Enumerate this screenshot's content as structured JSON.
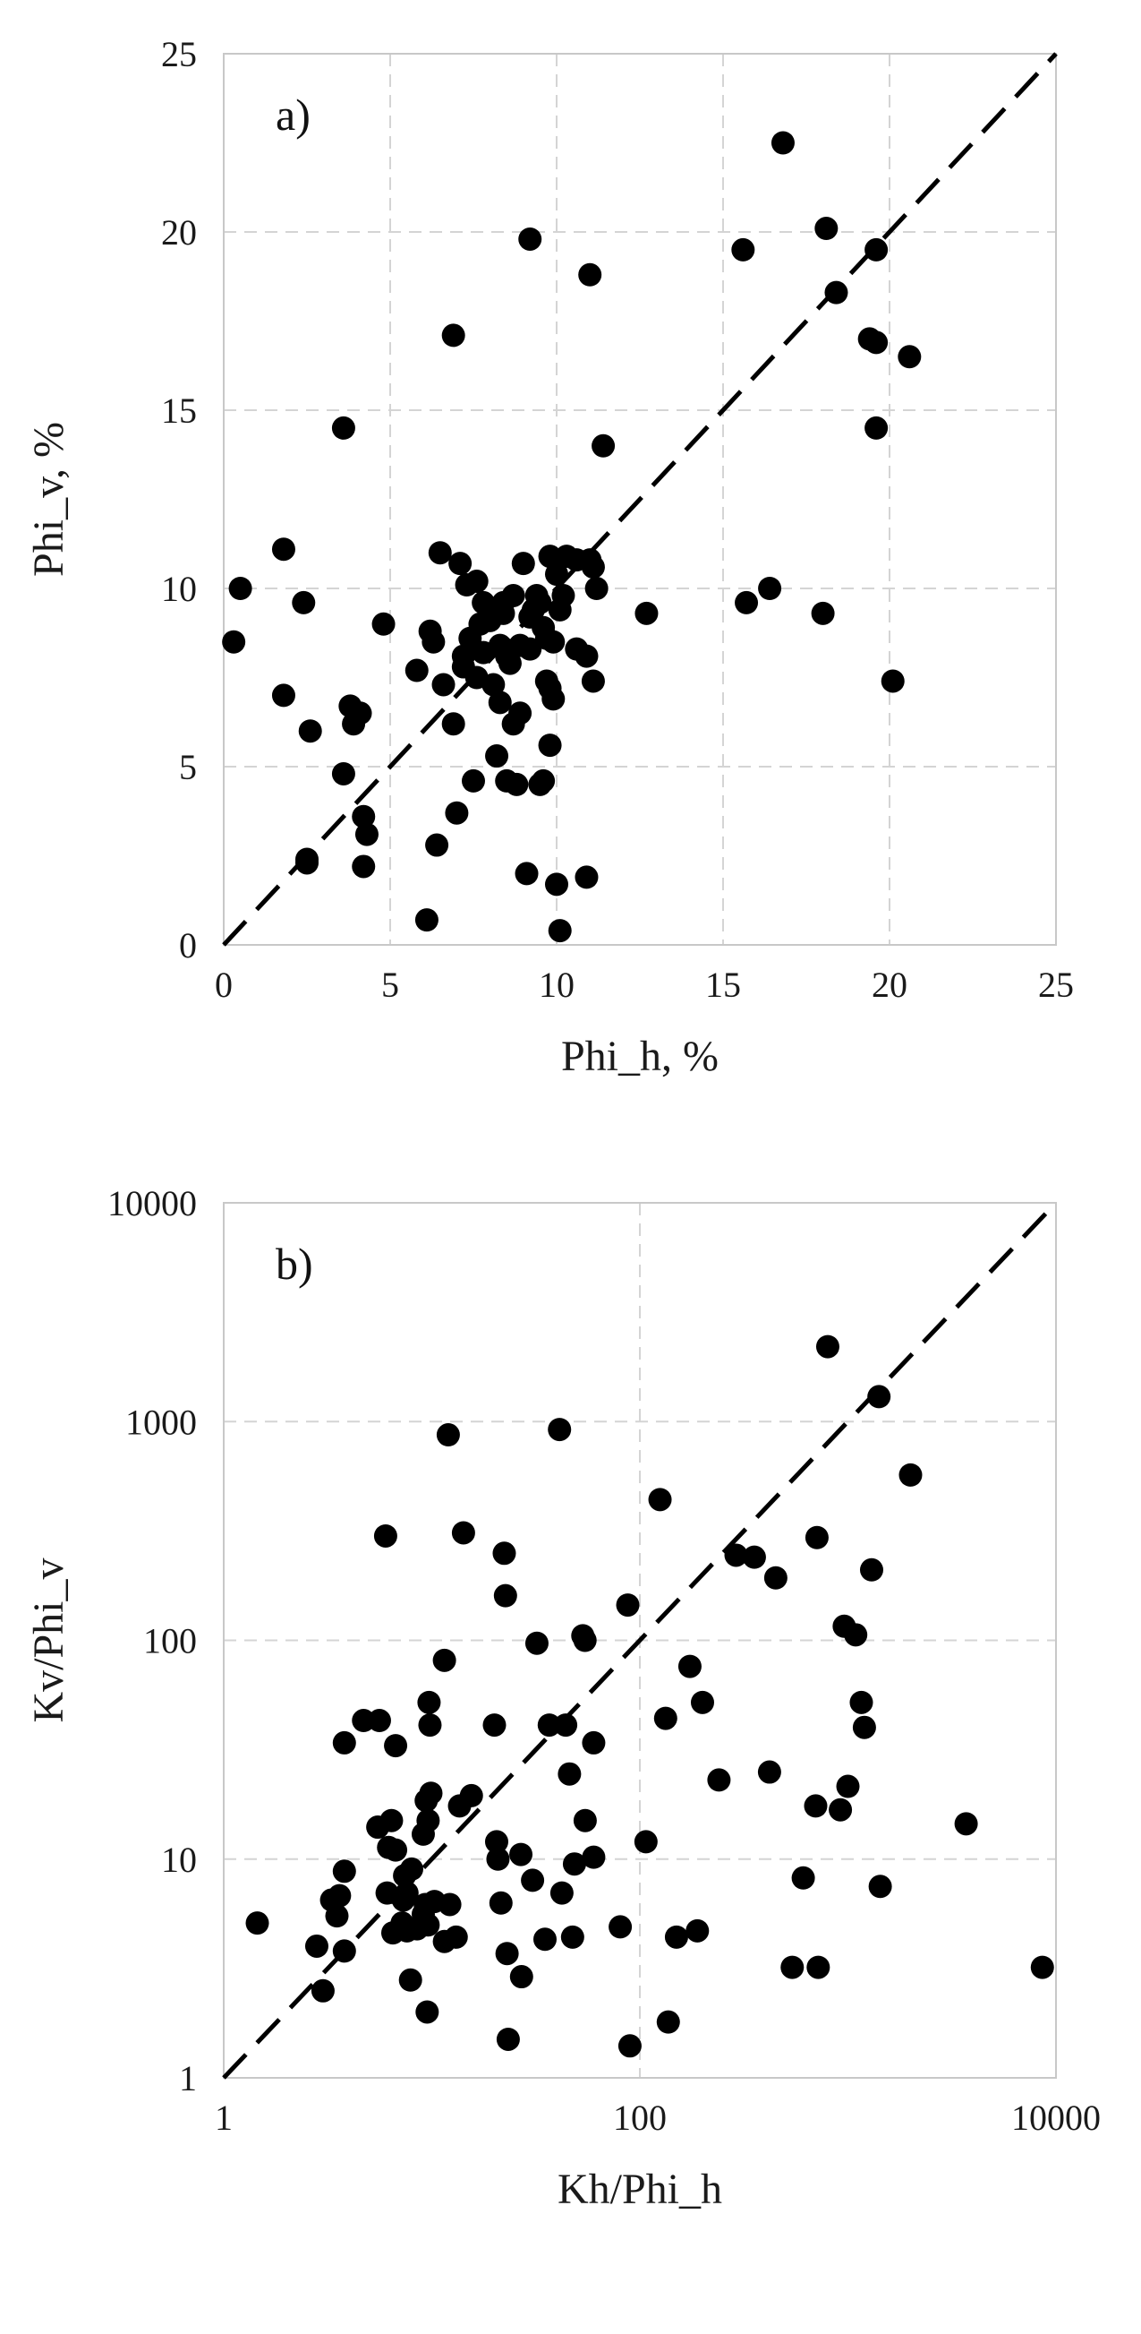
{
  "chart_data": [
    {
      "type": "scatter",
      "panel_label": "a)",
      "xlabel": "Phi_h, %",
      "ylabel": "Phi_v, %",
      "xlim": [
        0,
        25
      ],
      "ylim": [
        0,
        25
      ],
      "xticks": [
        "0",
        "5",
        "10",
        "15",
        "20",
        "25"
      ],
      "yticks": [
        "0",
        "5",
        "10",
        "15",
        "20",
        "25"
      ],
      "x_scale": "linear",
      "y_scale": "linear",
      "grid": true,
      "reference_line": "1:1 dashed",
      "points": [
        [
          16.8,
          22.5
        ],
        [
          9.2,
          19.8
        ],
        [
          18.1,
          20.1
        ],
        [
          19.6,
          19.5
        ],
        [
          15.6,
          19.5
        ],
        [
          11,
          18.8
        ],
        [
          18.4,
          18.3
        ],
        [
          6.9,
          17.1
        ],
        [
          19.4,
          17
        ],
        [
          19.6,
          16.9
        ],
        [
          20.6,
          16.5
        ],
        [
          3.6,
          14.5
        ],
        [
          19.6,
          14.5
        ],
        [
          11.4,
          14
        ],
        [
          0.5,
          10
        ],
        [
          1.8,
          11.1
        ],
        [
          2.4,
          9.6
        ],
        [
          0.3,
          8.5
        ],
        [
          4.8,
          9
        ],
        [
          1.8,
          7
        ],
        [
          2.6,
          6
        ],
        [
          3.8,
          6.7
        ],
        [
          3.9,
          6.2
        ],
        [
          4.1,
          6.5
        ],
        [
          3.6,
          4.8
        ],
        [
          4.2,
          3.6
        ],
        [
          4.3,
          3.1
        ],
        [
          4.2,
          2.2
        ],
        [
          2.5,
          2.4
        ],
        [
          2.5,
          2.3
        ],
        [
          6.1,
          0.7
        ],
        [
          6.4,
          2.8
        ],
        [
          7.0,
          3.7
        ],
        [
          6.2,
          8.8
        ],
        [
          6.3,
          8.5
        ],
        [
          5.8,
          7.7
        ],
        [
          6.5,
          11
        ],
        [
          7.1,
          10.7
        ],
        [
          7.3,
          10.1
        ],
        [
          7.6,
          10.2
        ],
        [
          6.6,
          7.3
        ],
        [
          6.9,
          6.2
        ],
        [
          7.2,
          7.8
        ],
        [
          7.4,
          8.6
        ],
        [
          7.8,
          9.6
        ],
        [
          8,
          9.1
        ],
        [
          8.3,
          8.4
        ],
        [
          8.4,
          9.3
        ],
        [
          8.5,
          8.1
        ],
        [
          8.7,
          9.8
        ],
        [
          9,
          10.7
        ],
        [
          9.2,
          9.2
        ],
        [
          9.5,
          9.6
        ],
        [
          9.7,
          8.6
        ],
        [
          9.8,
          10.9
        ],
        [
          10,
          10.4
        ],
        [
          10.3,
          10.9
        ],
        [
          10.6,
          10.8
        ],
        [
          11,
          10.8
        ],
        [
          11.1,
          10.6
        ],
        [
          11.2,
          10
        ],
        [
          10.2,
          9.8
        ],
        [
          10.6,
          8.3
        ],
        [
          10.9,
          8.1
        ],
        [
          11.1,
          7.4
        ],
        [
          9.8,
          7.2
        ],
        [
          9.9,
          6.9
        ],
        [
          9.7,
          7.4
        ],
        [
          8.9,
          6.5
        ],
        [
          8.7,
          6.2
        ],
        [
          8.2,
          5.3
        ],
        [
          9.8,
          5.6
        ],
        [
          9.6,
          4.6
        ],
        [
          9.5,
          4.5
        ],
        [
          8.5,
          4.6
        ],
        [
          8.8,
          4.5
        ],
        [
          7.5,
          4.6
        ],
        [
          7.8,
          8.2
        ],
        [
          7.6,
          7.5
        ],
        [
          8.1,
          7.3
        ],
        [
          8.3,
          6.8
        ],
        [
          8.6,
          7.9
        ],
        [
          9.2,
          8.3
        ],
        [
          9.4,
          9.8
        ],
        [
          9.6,
          8.9
        ],
        [
          10.1,
          9.4
        ],
        [
          9.9,
          8.5
        ],
        [
          9.1,
          2
        ],
        [
          10.9,
          1.9
        ],
        [
          10,
          1.7
        ],
        [
          10.1,
          0.4
        ],
        [
          12.7,
          9.3
        ],
        [
          15.7,
          9.6
        ],
        [
          16.4,
          10
        ],
        [
          18,
          9.3
        ],
        [
          20.1,
          7.4
        ],
        [
          7.7,
          9
        ],
        [
          8.4,
          9.6
        ],
        [
          9.3,
          9.4
        ],
        [
          8.9,
          8.4
        ],
        [
          7.2,
          8.1
        ]
      ]
    },
    {
      "type": "scatter",
      "panel_label": "b)",
      "xlabel": "Kh/Phi_h",
      "ylabel": "Kv/Phi_v",
      "xlim": [
        1,
        10000
      ],
      "ylim": [
        1,
        10000
      ],
      "xticks": [
        "1",
        "100",
        "10000"
      ],
      "yticks": [
        "1",
        "10",
        "100",
        "1000",
        "10000"
      ],
      "x_scale": "log",
      "y_scale": "log",
      "grid": true,
      "reference_line": "1:1 dashed",
      "points": [
        [
          1.45,
          5.1
        ],
        [
          2.8,
          4
        ],
        [
          3.3,
          6.5
        ],
        [
          3.6,
          6.8
        ],
        [
          3.8,
          8.8
        ],
        [
          3.5,
          5.5
        ],
        [
          3.8,
          3.8
        ],
        [
          3,
          2.5
        ],
        [
          3.8,
          34
        ],
        [
          4.7,
          43
        ],
        [
          5.6,
          43
        ],
        [
          6,
          300
        ],
        [
          5.5,
          14
        ],
        [
          6.4,
          15
        ],
        [
          6.7,
          33
        ],
        [
          6.2,
          11.3
        ],
        [
          6.7,
          11
        ],
        [
          7.4,
          8.4
        ],
        [
          7.6,
          7
        ],
        [
          8,
          9
        ],
        [
          7.3,
          6.5
        ],
        [
          6.1,
          7
        ],
        [
          7.2,
          5.1
        ],
        [
          7.6,
          4.7
        ],
        [
          6.5,
          4.6
        ],
        [
          7.9,
          2.8
        ],
        [
          8.5,
          4.8
        ],
        [
          9.1,
          13
        ],
        [
          9.6,
          15
        ],
        [
          9.4,
          18.5
        ],
        [
          9.9,
          20
        ],
        [
          9.7,
          52
        ],
        [
          9.8,
          41
        ],
        [
          10.3,
          6.4
        ],
        [
          9.3,
          6.2
        ],
        [
          9.1,
          5.6
        ],
        [
          9.6,
          5
        ],
        [
          9.5,
          2
        ],
        [
          11.5,
          81
        ],
        [
          12,
          870
        ],
        [
          11.5,
          4.2
        ],
        [
          12.2,
          6.2
        ],
        [
          13.1,
          4.4
        ],
        [
          13.6,
          17.5
        ],
        [
          14.2,
          310
        ],
        [
          15.5,
          19.5
        ],
        [
          20,
          41
        ],
        [
          20.5,
          12
        ],
        [
          20.8,
          10
        ],
        [
          21.5,
          6.3
        ],
        [
          22.3,
          250
        ],
        [
          22.6,
          160
        ],
        [
          23,
          3.7
        ],
        [
          23.3,
          1.5
        ],
        [
          26.8,
          10.5
        ],
        [
          27,
          2.9
        ],
        [
          30.5,
          8
        ],
        [
          32,
          97
        ],
        [
          36.7,
          41
        ],
        [
          41.1,
          920
        ],
        [
          42.2,
          7
        ],
        [
          45.9,
          24.5
        ],
        [
          47.5,
          4.4
        ],
        [
          48.5,
          9.5
        ],
        [
          53.2,
          105
        ],
        [
          54.6,
          15
        ],
        [
          54.5,
          100
        ],
        [
          60,
          34
        ],
        [
          80.5,
          4.9
        ],
        [
          87.5,
          145
        ],
        [
          89.6,
          1.4
        ],
        [
          107,
          12
        ],
        [
          125,
          440
        ],
        [
          133,
          44
        ],
        [
          137,
          1.8
        ],
        [
          150,
          4.4
        ],
        [
          174,
          76
        ],
        [
          189,
          4.7
        ],
        [
          200,
          52
        ],
        [
          240,
          23
        ],
        [
          290,
          245
        ],
        [
          355,
          240
        ],
        [
          420,
          25
        ],
        [
          450,
          193
        ],
        [
          540,
          3.2
        ],
        [
          610,
          8.2
        ],
        [
          720,
          3.2
        ],
        [
          700,
          17.5
        ],
        [
          710,
          295
        ],
        [
          800,
          2200
        ],
        [
          920,
          16.8
        ],
        [
          960,
          116
        ],
        [
          1000,
          21.5
        ],
        [
          1090,
          106
        ],
        [
          1160,
          52
        ],
        [
          1200,
          40
        ],
        [
          1300,
          210
        ],
        [
          1410,
          1300
        ],
        [
          1430,
          7.5
        ],
        [
          2000,
          570
        ],
        [
          3700,
          14.5
        ],
        [
          8600,
          3.2
        ],
        [
          35,
          4.3
        ],
        [
          44,
          41
        ],
        [
          60,
          10.2
        ]
      ]
    }
  ]
}
